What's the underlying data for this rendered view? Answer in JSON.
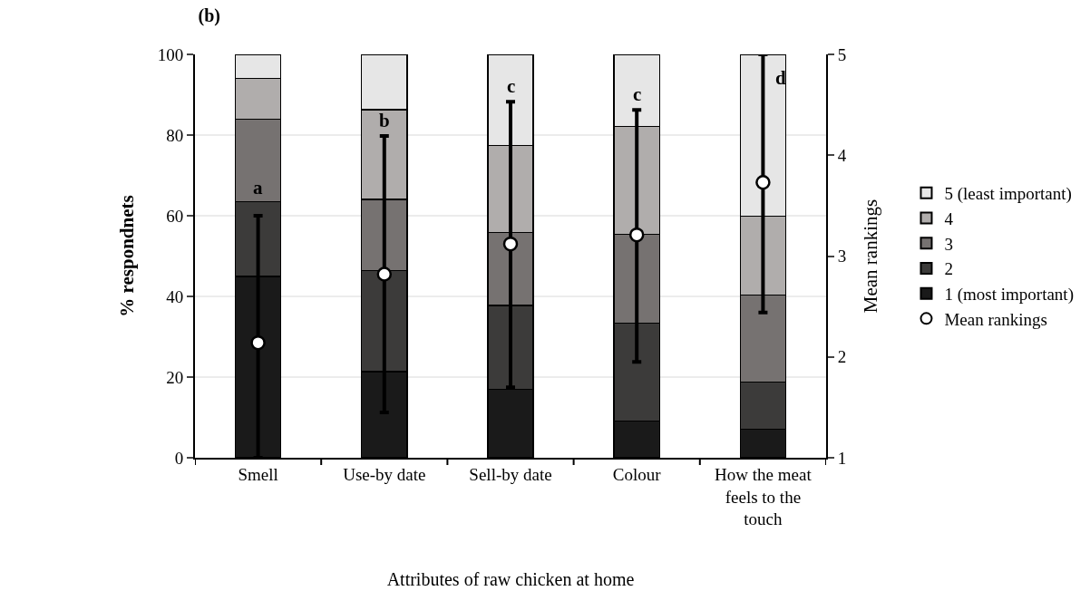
{
  "chart_data": {
    "type": "bar",
    "title": "(b)",
    "xlabel": "Attributes of raw chicken at home",
    "ylabel": "% respondnets",
    "y2label": "Mean rankings",
    "categories": [
      "Smell",
      "Use-by date",
      "Sell-by date",
      "Colour",
      "How the meat feels to the touch"
    ],
    "stacked": true,
    "series": [
      {
        "name": "1 (most important)",
        "color": "#1a1a1a",
        "values": [
          45,
          21.4,
          17,
          9.1,
          7.1
        ]
      },
      {
        "name": "2",
        "color": "#3c3b3a",
        "values": [
          18.5,
          25,
          20.7,
          24.3,
          11.7
        ]
      },
      {
        "name": "3",
        "color": "#767271",
        "values": [
          20.4,
          17.7,
          18.1,
          22,
          21.5
        ]
      },
      {
        "name": "4",
        "color": "#b0adac",
        "values": [
          10.2,
          22.2,
          21.6,
          26.7,
          19.6
        ]
      },
      {
        "name": "5 (least important)",
        "color": "#e6e6e6",
        "values": [
          5.9,
          13.7,
          22.6,
          17.9,
          40.1
        ]
      },
      {
        "name": "Mean rankings",
        "type": "scatter",
        "axis": "y2",
        "color": "#ffffff",
        "marker": "circle",
        "values": [
          2.14,
          2.82,
          3.12,
          3.21,
          3.73
        ],
        "errors": [
          [
            1,
            3.4
          ],
          [
            1.45,
            4.19
          ],
          [
            1.7,
            4.53
          ],
          [
            1.95,
            4.45
          ],
          [
            2.44,
            5
          ]
        ]
      }
    ],
    "ylim": [
      0,
      100
    ],
    "yticks": [
      0,
      20,
      40,
      60,
      80,
      100
    ],
    "y2lim": [
      1,
      5
    ],
    "y2ticks": [
      1,
      2,
      3,
      4,
      5
    ],
    "grid": "y",
    "legend": "right",
    "annotations": [
      "a",
      "b",
      "c",
      "c",
      "d"
    ]
  }
}
